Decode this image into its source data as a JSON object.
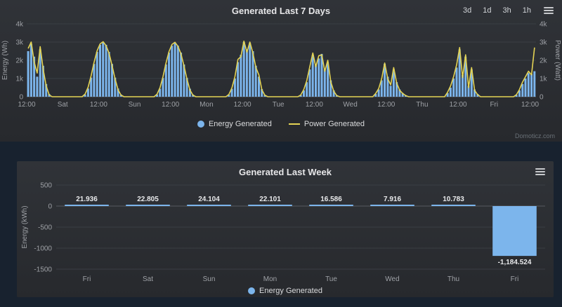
{
  "ui": {
    "range_buttons": [
      "3d",
      "1d",
      "3h",
      "1h"
    ],
    "watermark": "Domoticz.com",
    "menu_icon": "hamburger-menu-icon"
  },
  "colors": {
    "bar": "#7cb5ec",
    "line": "#e4d354",
    "grid": "#3a3e44",
    "zero_line": "#565a60",
    "axis_text": "#9ea1a6",
    "data_label": "#e8e9eb"
  },
  "chart_data": [
    {
      "type": "bar",
      "title": "Generated Last 7 Days",
      "ylabel_left": "Energy (Wh)",
      "ylabel_right": "Power (Watt)",
      "ylim": [
        0,
        4000
      ],
      "ytick_values": [
        0,
        1000,
        2000,
        3000,
        4000
      ],
      "ytick_labels": [
        "0",
        "1k",
        "2k",
        "3k",
        "4k"
      ],
      "x_hours": 170,
      "xticks": [
        [
          0,
          "12:00"
        ],
        [
          12,
          "Sat"
        ],
        [
          24,
          "12:00"
        ],
        [
          36,
          "Sun"
        ],
        [
          48,
          "12:00"
        ],
        [
          60,
          "Mon"
        ],
        [
          72,
          "12:00"
        ],
        [
          84,
          "Tue"
        ],
        [
          96,
          "12:00"
        ],
        [
          108,
          "Wed"
        ],
        [
          120,
          "12:00"
        ],
        [
          132,
          "Thu"
        ],
        [
          144,
          "12:00"
        ],
        [
          156,
          "Fri"
        ],
        [
          168,
          "12:00"
        ]
      ],
      "legend_position": "bottom",
      "grid": true,
      "series": [
        {
          "name": "Energy Generated",
          "type": "column",
          "color": "#7cb5ec",
          "values": [
            2500,
            2900,
            2200,
            1100,
            2600,
            1700,
            700,
            150,
            0,
            0,
            0,
            0,
            0,
            0,
            0,
            0,
            0,
            0,
            0,
            120,
            450,
            1050,
            1800,
            2460,
            2850,
            3000,
            2850,
            2460,
            1800,
            1050,
            450,
            120,
            0,
            0,
            0,
            0,
            0,
            0,
            0,
            0,
            0,
            0,
            0,
            120,
            440,
            1030,
            1770,
            2420,
            2800,
            2950,
            2800,
            2420,
            1770,
            1030,
            440,
            120,
            0,
            0,
            0,
            0,
            0,
            0,
            0,
            0,
            0,
            0,
            0,
            110,
            430,
            1000,
            1900,
            2300,
            3000,
            2600,
            2950,
            2500,
            1700,
            1100,
            420,
            100,
            0,
            0,
            0,
            0,
            0,
            0,
            0,
            0,
            0,
            0,
            0,
            90,
            350,
            800,
            1500,
            2300,
            1800,
            2100,
            2350,
            1500,
            1900,
            900,
            350,
            80,
            0,
            0,
            0,
            0,
            0,
            0,
            0,
            0,
            0,
            0,
            0,
            0,
            150,
            400,
            900,
            1800,
            1100,
            600,
            1500,
            800,
            400,
            200,
            80,
            0,
            0,
            0,
            0,
            0,
            0,
            0,
            0,
            0,
            0,
            0,
            0,
            0,
            200,
            500,
            1000,
            1600,
            2600,
            1200,
            2200,
            600,
            1500,
            400,
            150,
            0,
            0,
            0,
            0,
            0,
            0,
            0,
            0,
            0,
            0,
            0,
            0,
            100,
            350,
            700,
            1000,
            1300,
            1250,
            1400
          ]
        },
        {
          "name": "Power Generated",
          "type": "line",
          "color": "#e4d354",
          "values": [
            2650,
            3000,
            1900,
            1300,
            2750,
            1500,
            600,
            100,
            0,
            0,
            0,
            0,
            0,
            0,
            0,
            0,
            0,
            0,
            0,
            150,
            520,
            1150,
            1900,
            2520,
            2900,
            3020,
            2800,
            2380,
            1720,
            980,
            380,
            90,
            0,
            0,
            0,
            0,
            0,
            0,
            0,
            0,
            0,
            0,
            0,
            140,
            500,
            1100,
            1850,
            2480,
            2870,
            2990,
            2760,
            2350,
            1700,
            960,
            370,
            80,
            0,
            0,
            0,
            0,
            0,
            0,
            0,
            0,
            0,
            0,
            0,
            130,
            480,
            1100,
            2050,
            2200,
            3050,
            2450,
            3000,
            2400,
            1600,
            1200,
            380,
            80,
            0,
            0,
            0,
            0,
            0,
            0,
            0,
            0,
            0,
            0,
            0,
            100,
            400,
            900,
            1650,
            2400,
            1650,
            2250,
            2300,
            1400,
            2000,
            820,
            300,
            60,
            0,
            0,
            0,
            0,
            0,
            0,
            0,
            0,
            0,
            0,
            0,
            0,
            180,
            450,
            1000,
            1850,
            1000,
            650,
            1600,
            750,
            350,
            180,
            60,
            0,
            0,
            0,
            0,
            0,
            0,
            0,
            0,
            0,
            0,
            0,
            0,
            0,
            250,
            600,
            1100,
            1750,
            2700,
            1050,
            2300,
            500,
            1600,
            350,
            120,
            0,
            0,
            0,
            0,
            0,
            0,
            0,
            0,
            0,
            0,
            0,
            0,
            120,
            400,
            800,
            1100,
            1400,
            1200,
            2700
          ]
        }
      ]
    },
    {
      "type": "bar",
      "title": "Generated Last Week",
      "ylabel": "Energy (kWh)",
      "ylim": [
        -1500,
        500
      ],
      "yticks": [
        500,
        0,
        -500,
        -1000,
        -1500
      ],
      "categories": [
        "Fri",
        "Sat",
        "Sun",
        "Mon",
        "Tue",
        "Wed",
        "Thu",
        "Fri"
      ],
      "values": [
        21.936,
        22.805,
        24.104,
        22.101,
        16.586,
        7.916,
        10.783,
        -1184.524
      ],
      "labels": [
        "21.936",
        "22.805",
        "24.104",
        "22.101",
        "16.586",
        "7.916",
        "10.783",
        "-1,184.524"
      ],
      "series_name": "Energy Generated",
      "color": "#7cb5ec",
      "legend_position": "bottom",
      "grid": true
    }
  ]
}
